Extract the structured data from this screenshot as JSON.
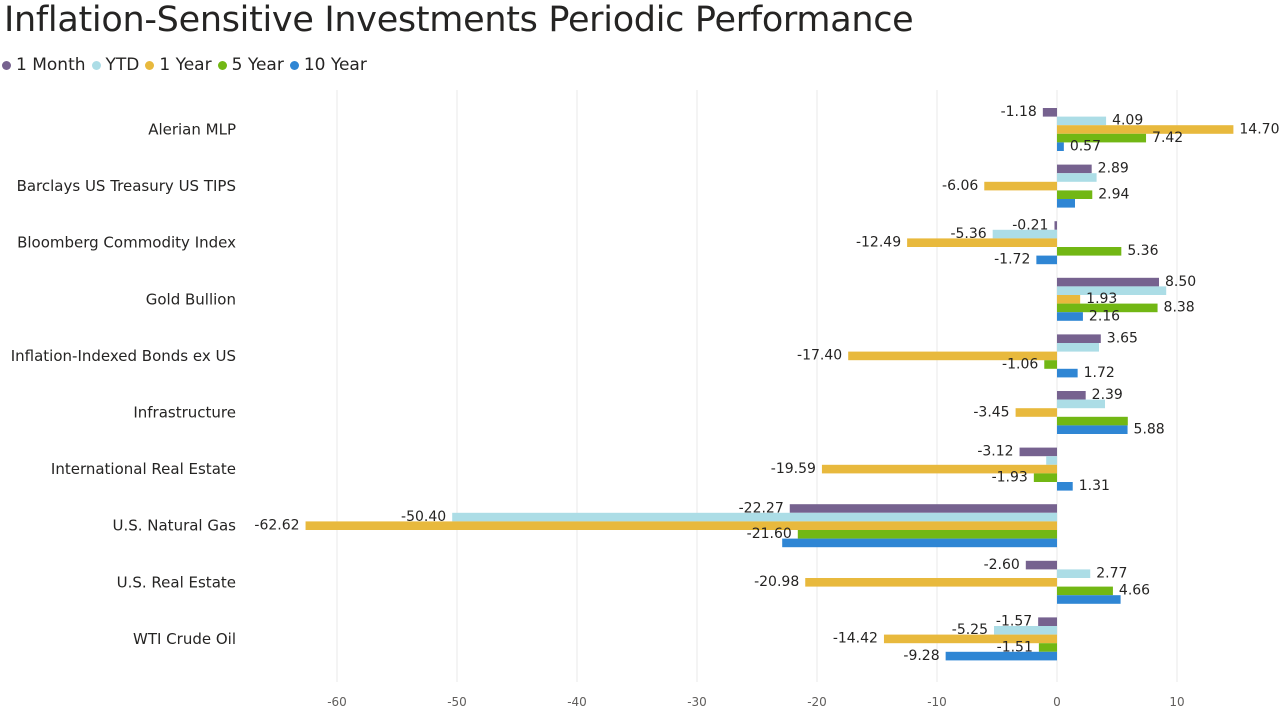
{
  "page": {
    "title": "Inflation-Sensitive Investments Periodic Performance"
  },
  "chart_data": {
    "type": "bar",
    "orientation": "horizontal",
    "title": "Inflation-Sensitive Investments Periodic Performance",
    "xlabel": "",
    "ylabel": "",
    "xlim": [
      -70,
      15
    ],
    "x_ticks": [
      -60,
      -50,
      -40,
      -30,
      -20,
      -10,
      0,
      10
    ],
    "grid": true,
    "legend_position": "top-left",
    "categories": [
      "Alerian MLP",
      "Barclays US Treasury US TIPS",
      "Bloomberg Commodity Index",
      "Gold Bullion",
      "Inflation-Indexed Bonds ex US",
      "Infrastructure",
      "International Real Estate",
      "U.S. Natural Gas",
      "U.S. Real Estate",
      "WTI Crude Oil"
    ],
    "series": [
      {
        "name": "1 Month",
        "color": "#76628f",
        "values": [
          -1.18,
          2.89,
          -0.21,
          8.5,
          3.65,
          2.39,
          -3.12,
          -22.27,
          -2.6,
          -1.57
        ],
        "labels": [
          "-1.18",
          "2.89",
          "-0.21",
          "8.50",
          "3.65",
          "2.39",
          "-3.12",
          "-22.27",
          "-2.60",
          "-1.57"
        ]
      },
      {
        "name": "YTD",
        "color": "#acdde6",
        "values": [
          4.09,
          3.3,
          -5.36,
          9.1,
          3.5,
          4.0,
          -0.9,
          -50.4,
          2.77,
          -5.25
        ],
        "labels": [
          "4.09",
          "",
          "-5.36",
          "",
          "",
          "",
          "",
          "-50.40",
          "2.77",
          "-5.25"
        ]
      },
      {
        "name": "1 Year",
        "color": "#e8b93d",
        "values": [
          14.7,
          -6.06,
          -12.49,
          1.93,
          -17.4,
          -3.45,
          -19.59,
          -62.62,
          -20.98,
          -14.42
        ],
        "labels": [
          "14.70",
          "-6.06",
          "-12.49",
          "1.93",
          "-17.40",
          "-3.45",
          "-19.59",
          "-62.62",
          "-20.98",
          "-14.42"
        ]
      },
      {
        "name": "5 Year",
        "color": "#72b714",
        "values": [
          7.42,
          2.94,
          5.36,
          8.38,
          -1.06,
          5.9,
          -1.93,
          -21.6,
          4.66,
          -1.51
        ],
        "labels": [
          "7.42",
          "2.94",
          "5.36",
          "8.38",
          "-1.06",
          "",
          "-1.93",
          "-21.60",
          "4.66",
          "-1.51"
        ]
      },
      {
        "name": "10 Year",
        "color": "#2f86d4",
        "values": [
          0.57,
          1.5,
          -1.72,
          2.16,
          1.72,
          5.88,
          1.31,
          -22.9,
          5.3,
          -9.28
        ],
        "labels": [
          "0.57",
          "",
          "-1.72",
          "2.16",
          "1.72",
          "5.88",
          "1.31",
          "",
          "",
          "-9.28"
        ]
      }
    ]
  }
}
